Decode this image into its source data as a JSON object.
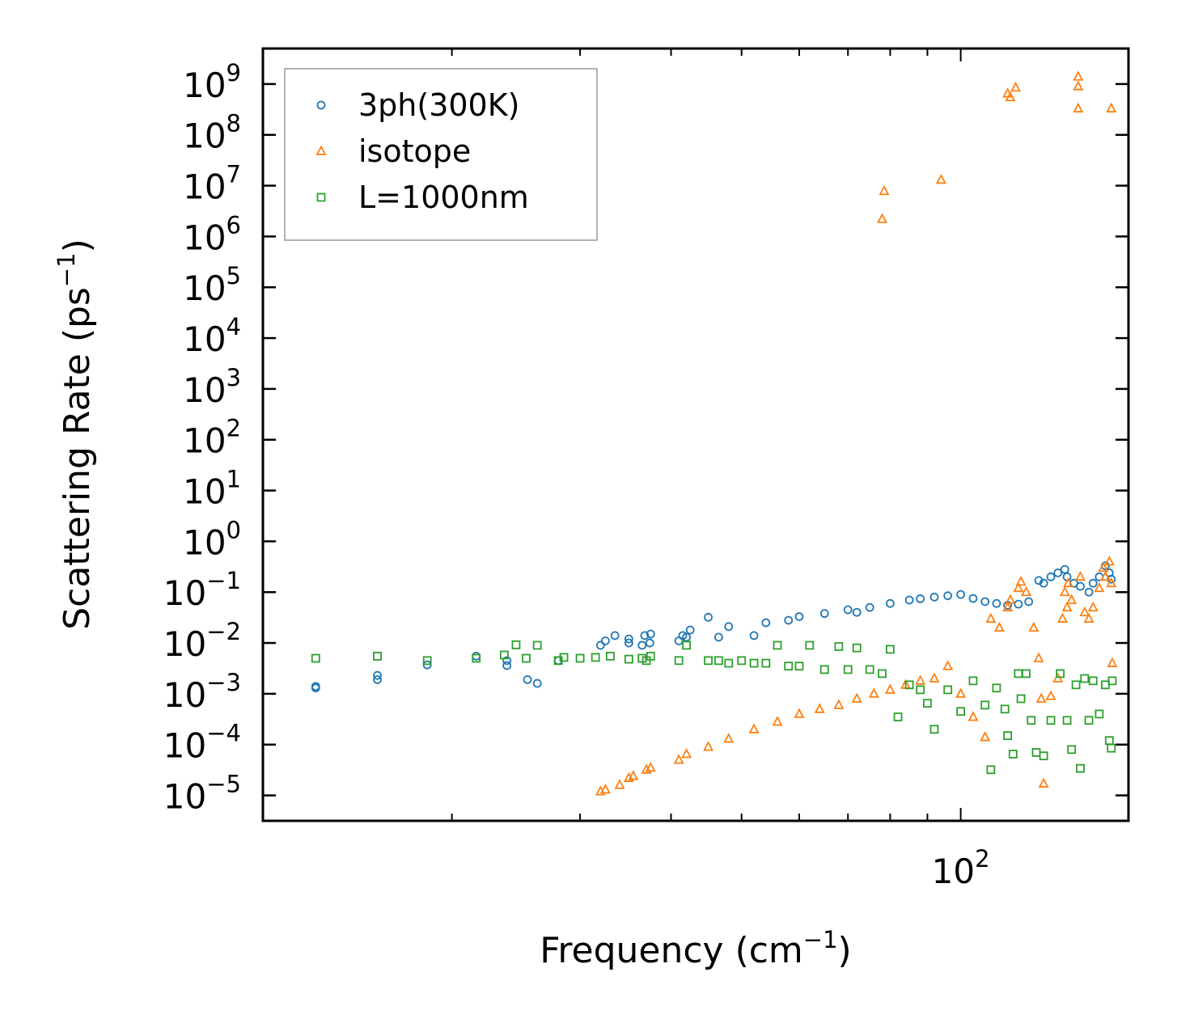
{
  "chart_data": {
    "type": "scatter",
    "title": "",
    "xlabel": "Frequency (cm",
    "xlabel_sup": "−1",
    "xlabel_tail": ")",
    "ylabel": "Scattering Rate (ps",
    "ylabel_sup": "−1",
    "ylabel_tail": ")",
    "xscale": "log",
    "yscale": "log",
    "xlim": [
      11,
      170
    ],
    "ylim": [
      3.16e-06,
      5000000000.0
    ],
    "x_tick_labels": [
      {
        "value": 100,
        "base": "10",
        "exp": "2"
      }
    ],
    "y_tick_labels": [
      {
        "value": 1000000000.0,
        "base": "10",
        "exp": "9"
      },
      {
        "value": 100000000.0,
        "base": "10",
        "exp": "8"
      },
      {
        "value": 10000000.0,
        "base": "10",
        "exp": "7"
      },
      {
        "value": 1000000.0,
        "base": "10",
        "exp": "6"
      },
      {
        "value": 100000.0,
        "base": "10",
        "exp": "5"
      },
      {
        "value": 10000.0,
        "base": "10",
        "exp": "4"
      },
      {
        "value": 1000.0,
        "base": "10",
        "exp": "3"
      },
      {
        "value": 100.0,
        "base": "10",
        "exp": "2"
      },
      {
        "value": 10.0,
        "base": "10",
        "exp": "1"
      },
      {
        "value": 1.0,
        "base": "10",
        "exp": "0"
      },
      {
        "value": 0.1,
        "base": "10",
        "exp": "−1"
      },
      {
        "value": 0.01,
        "base": "10",
        "exp": "−2"
      },
      {
        "value": 0.001,
        "base": "10",
        "exp": "−3"
      },
      {
        "value": 0.0001,
        "base": "10",
        "exp": "−4"
      },
      {
        "value": 1e-05,
        "base": "10",
        "exp": "−5"
      }
    ],
    "legend_position": "upper-left",
    "series": [
      {
        "name": "3ph(300K)",
        "color": "#1f77b4",
        "marker": "circle",
        "x": [
          13.0,
          13.0,
          15.8,
          15.8,
          18.5,
          21.6,
          23.8,
          23.8,
          25.4,
          26.2,
          28.0,
          32.0,
          32.5,
          33.5,
          35.0,
          35.0,
          36.5,
          36.8,
          37.4,
          37.5,
          41.0,
          41.5,
          42.0,
          42.5,
          45.0,
          46.5,
          48.0,
          52.0,
          54.0,
          58.0,
          60.0,
          65.0,
          70.0,
          72.0,
          75.0,
          80.0,
          85.0,
          88.0,
          92.0,
          96.0,
          100.0,
          104.0,
          108.0,
          112.0,
          116.0,
          120.0,
          124.0,
          128.0,
          130.0,
          133.0,
          136.0,
          139.0,
          140.0,
          143.0,
          146.0,
          150.0,
          152.0,
          155.0,
          158.0,
          160.0,
          161.0
        ],
        "y": [
          0.0014,
          0.0013,
          0.0023,
          0.0019,
          0.0037,
          0.0055,
          0.0045,
          0.0036,
          0.0019,
          0.0016,
          0.0045,
          0.009,
          0.011,
          0.014,
          0.012,
          0.01,
          0.009,
          0.014,
          0.01,
          0.015,
          0.011,
          0.014,
          0.013,
          0.018,
          0.032,
          0.013,
          0.021,
          0.014,
          0.025,
          0.028,
          0.033,
          0.038,
          0.045,
          0.04,
          0.05,
          0.06,
          0.07,
          0.074,
          0.08,
          0.085,
          0.09,
          0.075,
          0.065,
          0.06,
          0.055,
          0.058,
          0.065,
          0.17,
          0.15,
          0.2,
          0.24,
          0.28,
          0.2,
          0.15,
          0.13,
          0.1,
          0.15,
          0.2,
          0.33,
          0.24,
          0.18
        ]
      },
      {
        "name": "isotope",
        "color": "#ff7f0e",
        "marker": "triangle",
        "x": [
          32.0,
          32.5,
          34.0,
          35.0,
          35.5,
          37.0,
          37.5,
          41.0,
          42.0,
          45.0,
          48.0,
          52.0,
          56.0,
          60.0,
          64.0,
          68.0,
          72.0,
          76.0,
          80.0,
          84.0,
          88.0,
          92.0,
          96.0,
          100.0,
          104.0,
          108.0,
          110.0,
          113.0,
          116.0,
          117.0,
          120.0,
          121.0,
          123.0,
          126.0,
          128.0,
          129.0,
          130.0,
          133.0,
          136.0,
          138.0,
          139.0,
          140.0,
          140.5,
          142.0,
          146.0,
          148.0,
          150.0,
          152.0,
          155.0,
          157.0,
          158.0,
          160.0,
          161.0,
          161.5,
          78.0,
          78.5,
          94.0,
          116.0,
          117.0,
          119.0,
          145.0,
          145.0,
          145.0,
          161.0
        ],
        "y": [
          1.2e-05,
          1.3e-05,
          1.6e-05,
          2.2e-05,
          2.4e-05,
          3.2e-05,
          3.5e-05,
          5e-05,
          6.5e-05,
          9e-05,
          0.00013,
          0.0002,
          0.00028,
          0.0004,
          0.0005,
          0.0006,
          0.0008,
          0.001,
          0.0012,
          0.0015,
          0.0018,
          0.002,
          0.0035,
          0.001,
          0.00035,
          0.00014,
          0.03,
          0.02,
          0.05,
          0.07,
          0.12,
          0.16,
          0.1,
          0.02,
          0.005,
          0.0008,
          1.7e-05,
          0.0009,
          0.002,
          0.03,
          0.1,
          0.05,
          0.15,
          0.07,
          0.2,
          0.04,
          0.03,
          0.05,
          0.12,
          0.3,
          0.2,
          0.4,
          0.15,
          0.004,
          2200000.0,
          7800000.0,
          13000000.0,
          650000000.0,
          550000000.0,
          850000000.0,
          1400000000.0,
          900000000.0,
          330000000.0,
          330000000.0
        ]
      },
      {
        "name": "L=1000nm",
        "color": "#2ca02c",
        "marker": "square",
        "x": [
          13.0,
          15.8,
          18.5,
          21.6,
          23.6,
          24.5,
          25.3,
          26.2,
          28.0,
          28.5,
          30.0,
          31.5,
          33.0,
          35.0,
          36.5,
          37.0,
          37.5,
          41.0,
          42.0,
          45.0,
          46.5,
          48.0,
          50.0,
          52.0,
          54.0,
          56.0,
          58.0,
          60.0,
          62.0,
          65.0,
          68.0,
          70.0,
          72.0,
          75.0,
          78.0,
          80.0,
          82.0,
          85.0,
          88.0,
          90.0,
          92.0,
          96.0,
          100.0,
          104.0,
          108.0,
          110.0,
          112.0,
          115.0,
          116.0,
          118.0,
          120.0,
          121.0,
          123.0,
          125.0,
          127.0,
          130.0,
          133.0,
          137.0,
          140.0,
          142.0,
          144.0,
          146.0,
          148.0,
          150.0,
          152.0,
          155.0,
          158.0,
          160.0,
          161.0,
          161.5
        ],
        "y": [
          0.005,
          0.0055,
          0.0045,
          0.005,
          0.0058,
          0.0092,
          0.005,
          0.009,
          0.0045,
          0.0052,
          0.005,
          0.0052,
          0.0055,
          0.0048,
          0.005,
          0.0045,
          0.0055,
          0.0045,
          0.009,
          0.0045,
          0.0045,
          0.004,
          0.0045,
          0.004,
          0.004,
          0.009,
          0.0035,
          0.0035,
          0.009,
          0.003,
          0.0085,
          0.003,
          0.008,
          0.003,
          0.0025,
          0.0075,
          0.00035,
          0.0015,
          0.0012,
          0.00065,
          0.0002,
          0.0012,
          0.00045,
          0.0018,
          0.0006,
          3.2e-05,
          0.0013,
          0.0005,
          0.00015,
          6.5e-05,
          0.0025,
          0.0008,
          0.0025,
          0.0003,
          7e-05,
          6e-05,
          0.0003,
          0.0025,
          0.0003,
          8e-05,
          0.0015,
          3.4e-05,
          0.002,
          0.0003,
          0.0018,
          0.0004,
          0.0015,
          0.00012,
          8.5e-05,
          0.0018
        ]
      }
    ]
  }
}
